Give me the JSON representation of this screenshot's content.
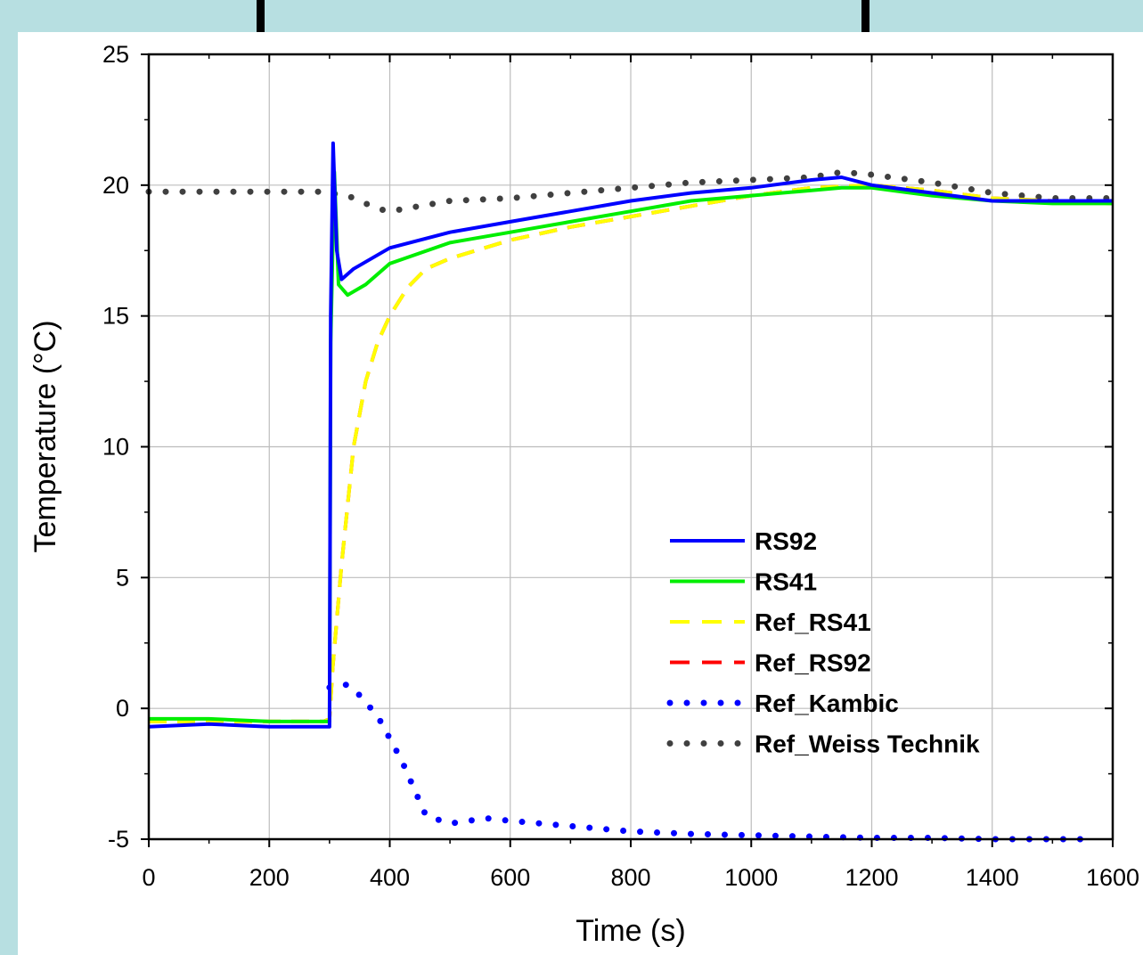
{
  "chart_data": {
    "type": "line",
    "title": "",
    "xlabel": "Time (s)",
    "ylabel": "Temperature (°C)",
    "xlim": [
      0,
      1600
    ],
    "ylim": [
      -5,
      25
    ],
    "xticks": [
      0,
      200,
      400,
      600,
      800,
      1000,
      1200,
      1400,
      1600
    ],
    "yticks": [
      -5,
      0,
      5,
      10,
      15,
      20,
      25
    ],
    "grid": true,
    "legend_position": "lower-right",
    "series": [
      {
        "name": "RS92",
        "color": "#0000ff",
        "style": "solid",
        "x": [
          0,
          100,
          200,
          290,
          300,
          302,
          306,
          312,
          320,
          340,
          400,
          500,
          600,
          700,
          800,
          900,
          1000,
          1100,
          1150,
          1200,
          1300,
          1400,
          1500,
          1600
        ],
        "y": [
          -0.7,
          -0.6,
          -0.7,
          -0.7,
          -0.7,
          15,
          21.6,
          17.5,
          16.4,
          16.8,
          17.6,
          18.2,
          18.6,
          19.0,
          19.4,
          19.7,
          19.9,
          20.2,
          20.3,
          20.0,
          19.7,
          19.4,
          19.4,
          19.4
        ]
      },
      {
        "name": "RS41",
        "color": "#00ee00",
        "style": "solid",
        "x": [
          0,
          100,
          200,
          290,
          300,
          302,
          308,
          315,
          330,
          360,
          400,
          500,
          600,
          700,
          800,
          900,
          1000,
          1100,
          1150,
          1200,
          1300,
          1400,
          1500,
          1600
        ],
        "y": [
          -0.4,
          -0.4,
          -0.5,
          -0.5,
          -0.5,
          14,
          20.5,
          16.2,
          15.8,
          16.2,
          17.0,
          17.8,
          18.2,
          18.6,
          19.0,
          19.4,
          19.6,
          19.8,
          19.9,
          19.9,
          19.6,
          19.4,
          19.3,
          19.3
        ]
      },
      {
        "name": "Ref_RS41",
        "color": "#ffff00",
        "style": "dashed",
        "x": [
          0,
          100,
          200,
          290,
          300,
          305,
          320,
          340,
          360,
          380,
          400,
          430,
          460,
          500,
          600,
          700,
          800,
          900,
          1000,
          1100,
          1200,
          1300,
          1400,
          1500,
          1600
        ],
        "y": [
          -0.5,
          -0.5,
          -0.5,
          -0.5,
          -0.4,
          1.5,
          5.5,
          10.0,
          12.5,
          14.0,
          15.0,
          16.1,
          16.8,
          17.2,
          17.9,
          18.4,
          18.8,
          19.2,
          19.6,
          19.9,
          20.0,
          19.8,
          19.5,
          19.4,
          19.3
        ]
      },
      {
        "name": "Ref_RS92",
        "color": "#ff0000",
        "style": "dashed",
        "x": [
          0,
          100,
          200,
          290,
          300,
          305,
          320,
          340,
          360,
          380,
          400,
          430,
          460,
          500,
          600,
          700,
          800,
          900,
          1000,
          1100,
          1200,
          1300,
          1400,
          1500,
          1600
        ],
        "y": [
          -0.5,
          -0.5,
          -0.5,
          -0.5,
          -0.4,
          1.5,
          5.5,
          10.0,
          12.5,
          14.0,
          15.0,
          16.1,
          16.8,
          17.2,
          17.9,
          18.4,
          18.8,
          19.2,
          19.6,
          19.9,
          20.0,
          19.8,
          19.5,
          19.4,
          19.3
        ]
      },
      {
        "name": "Ref_Kambic",
        "color": "#0000ff",
        "style": "dotted",
        "x": [
          300,
          310,
          330,
          350,
          380,
          420,
          460,
          500,
          560,
          600,
          700,
          800,
          900,
          1000,
          1100,
          1200,
          1300,
          1400,
          1500,
          1560
        ],
        "y": [
          0.8,
          0.9,
          0.9,
          0.5,
          -0.3,
          -2.0,
          -4.1,
          -4.4,
          -4.2,
          -4.3,
          -4.5,
          -4.7,
          -4.8,
          -4.85,
          -4.9,
          -4.95,
          -4.95,
          -5.0,
          -5.0,
          -5.0
        ]
      },
      {
        "name": "Ref_Weiss Technik",
        "color": "#404040",
        "style": "dotted",
        "x": [
          0,
          100,
          200,
          290,
          300,
          330,
          350,
          380,
          400,
          450,
          500,
          600,
          700,
          800,
          900,
          1000,
          1100,
          1150,
          1200,
          1300,
          1400,
          1500,
          1600
        ],
        "y": [
          19.75,
          19.75,
          19.75,
          19.75,
          19.7,
          19.6,
          19.4,
          19.1,
          19.0,
          19.2,
          19.4,
          19.5,
          19.7,
          19.9,
          20.1,
          20.2,
          20.3,
          20.5,
          20.4,
          20.1,
          19.7,
          19.5,
          19.5
        ]
      }
    ]
  }
}
